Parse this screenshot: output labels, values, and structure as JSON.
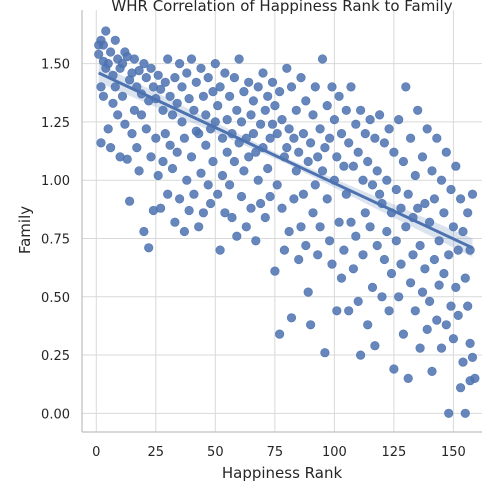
{
  "chart_data": {
    "type": "scatter",
    "title": "WHR Correlation of Happiness Rank to Family",
    "xlabel": "Happiness Rank",
    "ylabel": "Family",
    "xlim": [
      -6,
      162
    ],
    "ylim": [
      -0.08,
      1.73
    ],
    "xticks": [
      0,
      25,
      50,
      75,
      100,
      125,
      150
    ],
    "yticks": [
      0.0,
      0.25,
      0.5,
      0.75,
      1.0,
      1.25,
      1.5
    ],
    "ytick_labels": [
      "0.00",
      "0.25",
      "0.50",
      "0.75",
      "1.00",
      "1.25",
      "1.50"
    ],
    "grid": true,
    "regression": {
      "x": [
        1,
        158
      ],
      "y": [
        1.46,
        0.71
      ]
    },
    "series": [
      {
        "color": "#4c72b0",
        "points": [
          [
            1,
            1.58
          ],
          [
            1,
            1.54
          ],
          [
            2,
            1.6
          ],
          [
            2,
            1.4
          ],
          [
            2,
            1.16
          ],
          [
            3,
            1.58
          ],
          [
            3,
            1.36
          ],
          [
            3,
            1.51
          ],
          [
            4,
            1.64
          ],
          [
            4,
            1.48
          ],
          [
            5,
            1.5
          ],
          [
            5,
            1.22
          ],
          [
            6,
            1.55
          ],
          [
            6,
            1.14
          ],
          [
            7,
            1.45
          ],
          [
            7,
            1.33
          ],
          [
            8,
            1.6
          ],
          [
            8,
            1.4
          ],
          [
            9,
            1.52
          ],
          [
            9,
            1.28
          ],
          [
            10,
            1.48
          ],
          [
            10,
            1.1
          ],
          [
            11,
            1.5
          ],
          [
            11,
            1.36
          ],
          [
            12,
            1.55
          ],
          [
            12,
            1.24
          ],
          [
            13,
            1.53
          ],
          [
            13,
            1.09
          ],
          [
            14,
            1.43
          ],
          [
            14,
            0.91
          ],
          [
            15,
            1.46
          ],
          [
            15,
            1.2
          ],
          [
            16,
            1.52
          ],
          [
            16,
            1.3
          ],
          [
            17,
            1.4
          ],
          [
            17,
            1.14
          ],
          [
            18,
            1.47
          ],
          [
            18,
            1.04
          ],
          [
            19,
            1.37
          ],
          [
            19,
            1.28
          ],
          [
            20,
            1.5
          ],
          [
            20,
            0.78
          ],
          [
            21,
            1.44
          ],
          [
            21,
            1.22
          ],
          [
            22,
            1.34
          ],
          [
            22,
            0.71
          ],
          [
            23,
            1.48
          ],
          [
            23,
            1.1
          ],
          [
            24,
            1.4
          ],
          [
            24,
            0.87
          ],
          [
            25,
            1.35
          ],
          [
            25,
            1.18
          ],
          [
            26,
            1.45
          ],
          [
            26,
            1.02
          ],
          [
            27,
            1.39
          ],
          [
            27,
            0.88
          ],
          [
            28,
            1.3
          ],
          [
            28,
            1.08
          ],
          [
            29,
            1.42
          ],
          [
            29,
            1.2
          ],
          [
            30,
            1.52
          ],
          [
            30,
            0.94
          ],
          [
            31,
            1.36
          ],
          [
            31,
            1.15
          ],
          [
            32,
            1.28
          ],
          [
            32,
            1.05
          ],
          [
            33,
            1.44
          ],
          [
            33,
            0.82
          ],
          [
            34,
            1.33
          ],
          [
            34,
            1.12
          ],
          [
            35,
            1.5
          ],
          [
            35,
            0.92
          ],
          [
            36,
            1.4
          ],
          [
            36,
            1.25
          ],
          [
            37,
            1.18
          ],
          [
            37,
            0.78
          ],
          [
            38,
            1.46
          ],
          [
            38,
            1.0
          ],
          [
            39,
            1.35
          ],
          [
            39,
            0.87
          ],
          [
            40,
            1.52
          ],
          [
            40,
            1.1
          ],
          [
            41,
            1.3
          ],
          [
            41,
            0.94
          ],
          [
            42,
            1.42
          ],
          [
            42,
            1.21
          ],
          [
            43,
            1.2
          ],
          [
            43,
            0.8
          ],
          [
            44,
            1.48
          ],
          [
            44,
            1.03
          ],
          [
            45,
            1.36
          ],
          [
            45,
            0.86
          ],
          [
            46,
            1.28
          ],
          [
            46,
            1.15
          ],
          [
            47,
            1.44
          ],
          [
            47,
            0.98
          ],
          [
            48,
            1.22
          ],
          [
            48,
            0.9
          ],
          [
            49,
            1.38
          ],
          [
            49,
            1.08
          ],
          [
            50,
            1.5
          ],
          [
            50,
            1.25
          ],
          [
            51,
            1.32
          ],
          [
            51,
            0.94
          ],
          [
            52,
            1.4
          ],
          [
            52,
            0.7
          ],
          [
            53,
            1.18
          ],
          [
            53,
            1.02
          ],
          [
            54,
            1.46
          ],
          [
            54,
            0.86
          ],
          [
            55,
            1.26
          ],
          [
            55,
            1.12
          ],
          [
            56,
            1.36
          ],
          [
            56,
            0.98
          ],
          [
            57,
            1.2
          ],
          [
            57,
            0.84
          ],
          [
            58,
            1.44
          ],
          [
            58,
            1.08
          ],
          [
            59,
            1.3
          ],
          [
            59,
            0.76
          ],
          [
            60,
            1.52
          ],
          [
            60,
            1.16
          ],
          [
            61,
            1.25
          ],
          [
            61,
            0.93
          ],
          [
            62,
            1.38
          ],
          [
            62,
            1.04
          ],
          [
            63,
            1.18
          ],
          [
            63,
            0.8
          ],
          [
            64,
            1.42
          ],
          [
            64,
            1.1
          ],
          [
            65,
            1.28
          ],
          [
            65,
            0.88
          ],
          [
            66,
            1.34
          ],
          [
            66,
            1.2
          ],
          [
            67,
            1.12
          ],
          [
            67,
            0.74
          ],
          [
            68,
            1.4
          ],
          [
            68,
            1.0
          ],
          [
            69,
            1.24
          ],
          [
            69,
            0.9
          ],
          [
            70,
            1.46
          ],
          [
            70,
            1.14
          ],
          [
            71,
            1.3
          ],
          [
            71,
            0.84
          ],
          [
            72,
            1.36
          ],
          [
            72,
            1.05
          ],
          [
            73,
            1.18
          ],
          [
            73,
            0.93
          ],
          [
            74,
            1.42
          ],
          [
            74,
            1.24
          ],
          [
            75,
            1.32
          ],
          [
            75,
            0.61
          ],
          [
            76,
            1.2
          ],
          [
            76,
            0.98
          ],
          [
            77,
            1.38
          ],
          [
            77,
            0.34
          ],
          [
            78,
            1.26
          ],
          [
            78,
            0.88
          ],
          [
            79,
            1.1
          ],
          [
            79,
            0.7
          ],
          [
            80,
            1.48
          ],
          [
            80,
            1.14
          ],
          [
            81,
            1.22
          ],
          [
            81,
            0.78
          ],
          [
            82,
            1.4
          ],
          [
            82,
            0.41
          ],
          [
            83,
            1.18
          ],
          [
            83,
            0.92
          ],
          [
            84,
            1.3
          ],
          [
            84,
            1.04
          ],
          [
            85,
            1.12
          ],
          [
            85,
            0.66
          ],
          [
            86,
            1.44
          ],
          [
            86,
            0.8
          ],
          [
            87,
            1.2
          ],
          [
            87,
            0.94
          ],
          [
            88,
            1.34
          ],
          [
            88,
            0.72
          ],
          [
            89,
            1.08
          ],
          [
            89,
            0.52
          ],
          [
            90,
            1.16
          ],
          [
            90,
            0.38
          ],
          [
            91,
            1.28
          ],
          [
            91,
            0.86
          ],
          [
            92,
            1.4
          ],
          [
            92,
            0.98
          ],
          [
            93,
            1.1
          ],
          [
            93,
            0.68
          ],
          [
            94,
            1.22
          ],
          [
            94,
            0.8
          ],
          [
            95,
            1.52
          ],
          [
            95,
            1.04
          ],
          [
            96,
            1.14
          ],
          [
            96,
            0.26
          ],
          [
            97,
            1.32
          ],
          [
            97,
            0.92
          ],
          [
            98,
            1.18
          ],
          [
            98,
            0.74
          ],
          [
            99,
            1.4
          ],
          [
            99,
            0.64
          ],
          [
            100,
            1.26
          ],
          [
            100,
            1.0
          ],
          [
            101,
            1.1
          ],
          [
            101,
            0.44
          ],
          [
            102,
            1.36
          ],
          [
            102,
            0.82
          ],
          [
            103,
            1.2
          ],
          [
            103,
            0.58
          ],
          [
            104,
            1.06
          ],
          [
            104,
            0.7
          ],
          [
            105,
            1.3
          ],
          [
            105,
            0.94
          ],
          [
            106,
            1.16
          ],
          [
            106,
            0.44
          ],
          [
            107,
            1.4
          ],
          [
            107,
            0.82
          ],
          [
            108,
            1.06
          ],
          [
            108,
            0.62
          ],
          [
            109,
            1.24
          ],
          [
            109,
            0.76
          ],
          [
            110,
            1.12
          ],
          [
            110,
            0.48
          ],
          [
            111,
            1.3
          ],
          [
            111,
            0.25
          ],
          [
            112,
            1.0
          ],
          [
            112,
            0.68
          ],
          [
            113,
            1.2
          ],
          [
            113,
            0.86
          ],
          [
            114,
            1.08
          ],
          [
            114,
            0.38
          ],
          [
            115,
            1.26
          ],
          [
            115,
            0.8
          ],
          [
            116,
            0.98
          ],
          [
            116,
            0.54
          ],
          [
            117,
            1.18
          ],
          [
            117,
            0.29
          ],
          [
            118,
            1.04
          ],
          [
            118,
            0.72
          ],
          [
            119,
            1.28
          ],
          [
            119,
            0.94
          ],
          [
            120,
            0.9
          ],
          [
            120,
            0.5
          ],
          [
            121,
            1.16
          ],
          [
            121,
            0.66
          ],
          [
            122,
            1.0
          ],
          [
            122,
            0.78
          ],
          [
            123,
            1.22
          ],
          [
            123,
            0.44
          ],
          [
            124,
            0.86
          ],
          [
            124,
            0.6
          ],
          [
            125,
            1.12
          ],
          [
            125,
            0.19
          ],
          [
            126,
            0.96
          ],
          [
            126,
            0.74
          ],
          [
            127,
            1.26
          ],
          [
            127,
            0.5
          ],
          [
            128,
            0.88
          ],
          [
            128,
            0.64
          ],
          [
            129,
            1.08
          ],
          [
            129,
            0.34
          ],
          [
            130,
            1.4
          ],
          [
            130,
            0.8
          ],
          [
            131,
            0.94
          ],
          [
            131,
            0.15
          ],
          [
            132,
            1.18
          ],
          [
            132,
            0.56
          ],
          [
            133,
            0.84
          ],
          [
            133,
            0.68
          ],
          [
            134,
            1.02
          ],
          [
            134,
            0.44
          ],
          [
            135,
            1.3
          ],
          [
            135,
            0.88
          ],
          [
            136,
            0.72
          ],
          [
            136,
            0.28
          ],
          [
            137,
            1.1
          ],
          [
            137,
            0.52
          ],
          [
            138,
            0.9
          ],
          [
            138,
            0.62
          ],
          [
            139,
            1.22
          ],
          [
            139,
            0.36
          ],
          [
            140,
            0.82
          ],
          [
            140,
            0.48
          ],
          [
            141,
            1.04
          ],
          [
            141,
            0.18
          ],
          [
            142,
            0.92
          ],
          [
            142,
            0.66
          ],
          [
            143,
            1.18
          ],
          [
            143,
            0.4
          ],
          [
            144,
            0.74
          ],
          [
            144,
            0.55
          ],
          [
            145,
            1.0
          ],
          [
            145,
            0.28
          ],
          [
            146,
            0.86
          ],
          [
            146,
            0.6
          ],
          [
            147,
            1.12
          ],
          [
            147,
            0.38
          ],
          [
            148,
            0.68
          ],
          [
            148,
            0.0
          ],
          [
            149,
            0.96
          ],
          [
            149,
            0.46
          ],
          [
            150,
            0.8
          ],
          [
            150,
            0.32
          ],
          [
            151,
            1.06
          ],
          [
            151,
            0.54
          ],
          [
            152,
            0.7
          ],
          [
            152,
            0.42
          ],
          [
            153,
            0.92
          ],
          [
            153,
            0.11
          ],
          [
            154,
            0.78
          ],
          [
            154,
            0.22
          ],
          [
            155,
            0.0
          ],
          [
            155,
            0.58
          ],
          [
            156,
            0.86
          ],
          [
            156,
            0.46
          ],
          [
            157,
            0.7
          ],
          [
            157,
            0.14
          ],
          [
            157,
            0.3
          ],
          [
            158,
            0.94
          ],
          [
            158,
            0.24
          ],
          [
            159,
            0.15
          ]
        ]
      }
    ]
  }
}
